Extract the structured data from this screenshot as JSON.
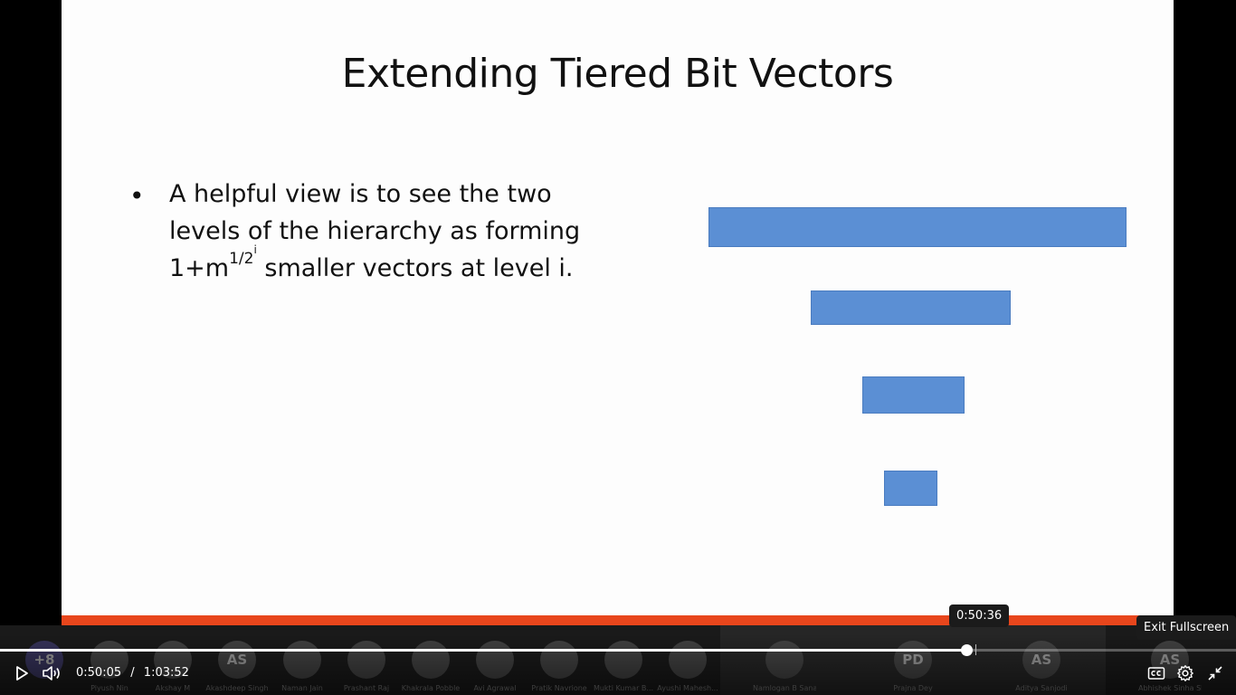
{
  "slide": {
    "title": "Extending Tiered Bit Vectors",
    "bullet_line1": "A helpful view is to see the two",
    "bullet_line2": "levels of the hierarchy as forming",
    "bullet_line3_pre": "1+m",
    "bullet_line3_sup": "1/2",
    "bullet_line3_supsup": "i",
    "bullet_line3_post": " smaller vectors at level i.",
    "bar_color": "#5b8fd4"
  },
  "participants": [
    {
      "initials": "+8",
      "name": ""
    },
    {
      "initials": "",
      "name": "Piyush Nin"
    },
    {
      "initials": "",
      "name": "Akshay M"
    },
    {
      "initials": "AS",
      "name": "Akashdeep Singh"
    },
    {
      "initials": "",
      "name": "Naman Jain"
    },
    {
      "initials": "",
      "name": "Prashant Raj"
    },
    {
      "initials": "",
      "name": "Khakrala Pobble"
    },
    {
      "initials": "",
      "name": "Avi Agrawal"
    },
    {
      "initials": "",
      "name": "Pratik Navrione"
    },
    {
      "initials": "",
      "name": "Mukti Kumar B..."
    },
    {
      "initials": "",
      "name": "Ayushi Mahesh..."
    },
    {
      "initials": "",
      "name": "Namlogan B Sanat"
    },
    {
      "initials": "PD",
      "name": "Prajna Dey"
    },
    {
      "initials": "AS",
      "name": "Aditya Sanjodi"
    },
    {
      "initials": "AS",
      "name": "Abhishek Sinha Shubham & Appate"
    }
  ],
  "player": {
    "current_time": "0:50:05",
    "separator": "/",
    "duration": "1:03:52",
    "progress_fraction": 0.782,
    "hover_time": "0:50:36",
    "exit_fullscreen_tooltip": "Exit Fullscreen",
    "icons": {
      "play": "play-icon",
      "volume": "volume-icon",
      "captions": "captions-icon",
      "settings": "gear-icon",
      "exit_fullscreen": "exit-fullscreen-icon"
    }
  }
}
